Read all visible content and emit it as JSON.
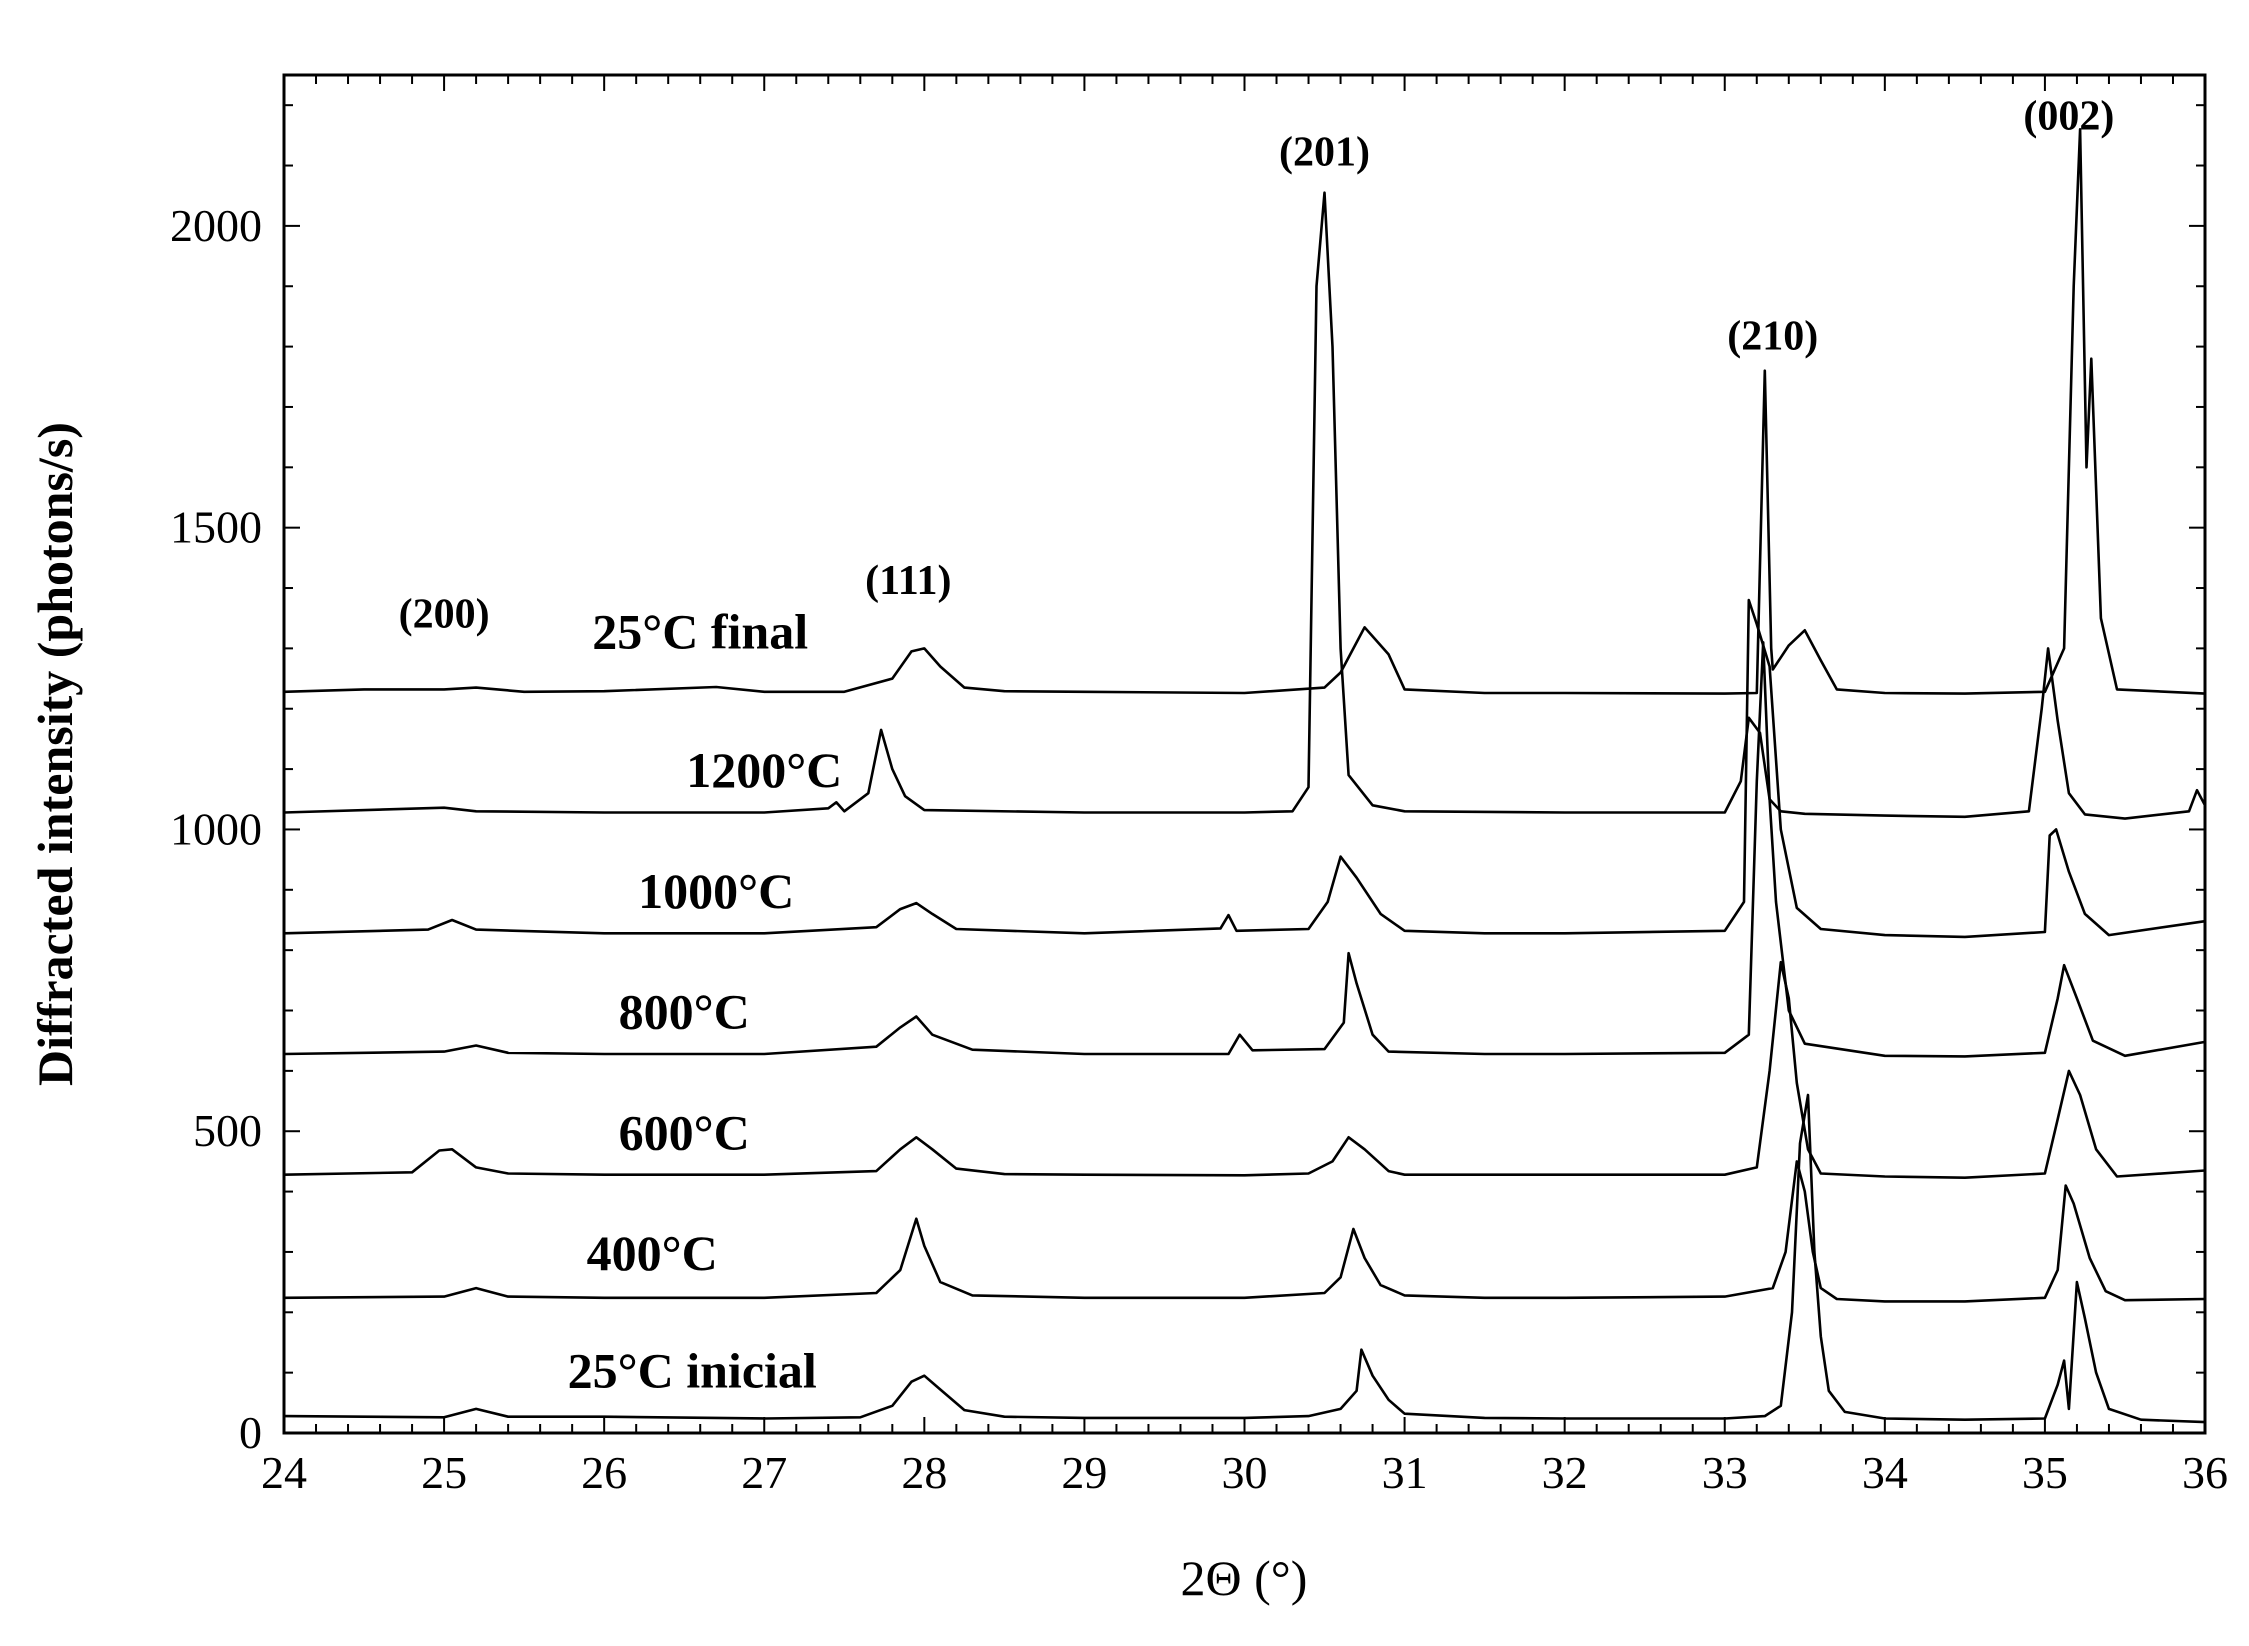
{
  "chart_data": {
    "type": "line",
    "xlabel": "2Θ (°)",
    "ylabel": "Diffracted intensity (photons/s)",
    "xlim": [
      24,
      36
    ],
    "ylim": [
      0,
      2250
    ],
    "x_ticks": [
      "24",
      "25",
      "26",
      "27",
      "28",
      "29",
      "30",
      "31",
      "32",
      "33",
      "34",
      "35",
      "36"
    ],
    "y_ticks": [
      "0",
      "500",
      "1000",
      "1500",
      "2000"
    ],
    "grid": false,
    "series": [
      {
        "name": "25°C inicial",
        "points": [
          [
            24.0,
            28
          ],
          [
            24.5,
            27
          ],
          [
            25.0,
            26
          ],
          [
            25.2,
            40
          ],
          [
            25.4,
            27
          ],
          [
            26.0,
            27
          ],
          [
            27.0,
            24
          ],
          [
            27.6,
            26
          ],
          [
            27.8,
            45
          ],
          [
            27.92,
            85
          ],
          [
            28.0,
            95
          ],
          [
            28.1,
            72
          ],
          [
            28.25,
            38
          ],
          [
            28.5,
            27
          ],
          [
            29.0,
            25
          ],
          [
            30.0,
            25
          ],
          [
            30.4,
            28
          ],
          [
            30.6,
            40
          ],
          [
            30.7,
            70
          ],
          [
            30.73,
            138
          ],
          [
            30.8,
            95
          ],
          [
            30.9,
            55
          ],
          [
            31.0,
            32
          ],
          [
            31.5,
            25
          ],
          [
            32.0,
            24
          ],
          [
            33.0,
            24
          ],
          [
            33.25,
            28
          ],
          [
            33.35,
            45
          ],
          [
            33.42,
            200
          ],
          [
            33.47,
            480
          ],
          [
            33.52,
            560
          ],
          [
            33.56,
            300
          ],
          [
            33.6,
            160
          ],
          [
            33.65,
            70
          ],
          [
            33.75,
            35
          ],
          [
            34.0,
            24
          ],
          [
            34.5,
            22
          ],
          [
            35.0,
            24
          ],
          [
            35.08,
            80
          ],
          [
            35.12,
            120
          ],
          [
            35.15,
            40
          ],
          [
            35.2,
            250
          ],
          [
            35.25,
            190
          ],
          [
            35.32,
            100
          ],
          [
            35.4,
            40
          ],
          [
            35.6,
            22
          ],
          [
            36.0,
            18
          ]
        ]
      },
      {
        "name": "400°C",
        "points": [
          [
            24.0,
            224
          ],
          [
            25.0,
            226
          ],
          [
            25.2,
            240
          ],
          [
            25.4,
            226
          ],
          [
            26.0,
            224
          ],
          [
            27.0,
            224
          ],
          [
            27.7,
            232
          ],
          [
            27.85,
            270
          ],
          [
            27.95,
            355
          ],
          [
            28.0,
            310
          ],
          [
            28.1,
            250
          ],
          [
            28.3,
            228
          ],
          [
            29.0,
            224
          ],
          [
            30.0,
            224
          ],
          [
            30.5,
            232
          ],
          [
            30.6,
            258
          ],
          [
            30.68,
            338
          ],
          [
            30.75,
            290
          ],
          [
            30.85,
            245
          ],
          [
            31.0,
            228
          ],
          [
            31.5,
            224
          ],
          [
            32.0,
            224
          ],
          [
            33.0,
            226
          ],
          [
            33.3,
            240
          ],
          [
            33.38,
            300
          ],
          [
            33.45,
            450
          ],
          [
            33.5,
            400
          ],
          [
            33.55,
            300
          ],
          [
            33.6,
            240
          ],
          [
            33.7,
            222
          ],
          [
            34.0,
            218
          ],
          [
            34.5,
            218
          ],
          [
            35.0,
            224
          ],
          [
            35.08,
            270
          ],
          [
            35.13,
            410
          ],
          [
            35.18,
            380
          ],
          [
            35.28,
            290
          ],
          [
            35.38,
            235
          ],
          [
            35.5,
            220
          ],
          [
            36.0,
            222
          ]
        ]
      },
      {
        "name": "600°C",
        "points": [
          [
            24.0,
            428
          ],
          [
            24.8,
            432
          ],
          [
            24.97,
            468
          ],
          [
            25.05,
            470
          ],
          [
            25.2,
            440
          ],
          [
            25.4,
            430
          ],
          [
            26.0,
            428
          ],
          [
            27.0,
            428
          ],
          [
            27.7,
            434
          ],
          [
            27.85,
            470
          ],
          [
            27.95,
            490
          ],
          [
            28.05,
            470
          ],
          [
            28.2,
            438
          ],
          [
            28.5,
            429
          ],
          [
            29.0,
            428
          ],
          [
            30.0,
            427
          ],
          [
            30.4,
            430
          ],
          [
            30.55,
            450
          ],
          [
            30.65,
            490
          ],
          [
            30.75,
            470
          ],
          [
            30.9,
            434
          ],
          [
            31.0,
            428
          ],
          [
            32.0,
            428
          ],
          [
            33.0,
            428
          ],
          [
            33.2,
            440
          ],
          [
            33.28,
            600
          ],
          [
            33.35,
            780
          ],
          [
            33.4,
            720
          ],
          [
            33.45,
            580
          ],
          [
            33.52,
            470
          ],
          [
            33.6,
            430
          ],
          [
            34.0,
            425
          ],
          [
            34.5,
            423
          ],
          [
            35.0,
            430
          ],
          [
            35.08,
            520
          ],
          [
            35.15,
            600
          ],
          [
            35.22,
            560
          ],
          [
            35.32,
            470
          ],
          [
            35.45,
            425
          ],
          [
            36.0,
            435
          ]
        ]
      },
      {
        "name": "800°C",
        "points": [
          [
            24.0,
            628
          ],
          [
            25.0,
            632
          ],
          [
            25.2,
            642
          ],
          [
            25.4,
            630
          ],
          [
            26.0,
            628
          ],
          [
            27.0,
            628
          ],
          [
            27.7,
            640
          ],
          [
            27.85,
            672
          ],
          [
            27.95,
            690
          ],
          [
            28.05,
            660
          ],
          [
            28.3,
            635
          ],
          [
            29.0,
            628
          ],
          [
            29.9,
            628
          ],
          [
            29.97,
            660
          ],
          [
            30.05,
            634
          ],
          [
            30.5,
            636
          ],
          [
            30.62,
            680
          ],
          [
            30.65,
            795
          ],
          [
            30.7,
            745
          ],
          [
            30.8,
            660
          ],
          [
            30.9,
            632
          ],
          [
            31.5,
            628
          ],
          [
            32.0,
            628
          ],
          [
            33.0,
            630
          ],
          [
            33.15,
            660
          ],
          [
            33.2,
            1080
          ],
          [
            33.24,
            1310
          ],
          [
            33.28,
            1050
          ],
          [
            33.32,
            880
          ],
          [
            33.4,
            700
          ],
          [
            33.5,
            645
          ],
          [
            34.0,
            625
          ],
          [
            34.5,
            624
          ],
          [
            35.0,
            630
          ],
          [
            35.08,
            720
          ],
          [
            35.12,
            775
          ],
          [
            35.2,
            720
          ],
          [
            35.3,
            650
          ],
          [
            35.5,
            625
          ],
          [
            36.0,
            648
          ]
        ]
      },
      {
        "name": "1000°C",
        "points": [
          [
            24.0,
            828
          ],
          [
            24.9,
            834
          ],
          [
            25.05,
            850
          ],
          [
            25.2,
            834
          ],
          [
            26.0,
            828
          ],
          [
            27.0,
            828
          ],
          [
            27.7,
            838
          ],
          [
            27.85,
            868
          ],
          [
            27.95,
            878
          ],
          [
            28.05,
            860
          ],
          [
            28.2,
            835
          ],
          [
            29.0,
            828
          ],
          [
            29.85,
            836
          ],
          [
            29.9,
            858
          ],
          [
            29.95,
            832
          ],
          [
            30.4,
            835
          ],
          [
            30.52,
            880
          ],
          [
            30.6,
            955
          ],
          [
            30.7,
            920
          ],
          [
            30.85,
            860
          ],
          [
            31.0,
            832
          ],
          [
            31.5,
            828
          ],
          [
            32.0,
            828
          ],
          [
            33.0,
            832
          ],
          [
            33.12,
            880
          ],
          [
            33.15,
            1380
          ],
          [
            33.2,
            1340
          ],
          [
            33.28,
            1270
          ],
          [
            33.35,
            1000
          ],
          [
            33.45,
            870
          ],
          [
            33.6,
            835
          ],
          [
            34.0,
            825
          ],
          [
            34.5,
            822
          ],
          [
            35.0,
            830
          ],
          [
            35.03,
            990
          ],
          [
            35.07,
            1000
          ],
          [
            35.15,
            930
          ],
          [
            35.25,
            860
          ],
          [
            35.4,
            825
          ],
          [
            36.0,
            848
          ]
        ]
      },
      {
        "name": "1200°C",
        "points": [
          [
            24.0,
            1028
          ],
          [
            25.0,
            1036
          ],
          [
            25.2,
            1030
          ],
          [
            26.0,
            1028
          ],
          [
            27.0,
            1028
          ],
          [
            27.4,
            1035
          ],
          [
            27.45,
            1045
          ],
          [
            27.5,
            1030
          ],
          [
            27.65,
            1060
          ],
          [
            27.73,
            1165
          ],
          [
            27.8,
            1100
          ],
          [
            27.88,
            1055
          ],
          [
            28.0,
            1032
          ],
          [
            29.0,
            1028
          ],
          [
            30.0,
            1028
          ],
          [
            30.3,
            1030
          ],
          [
            30.4,
            1070
          ],
          [
            30.45,
            1900
          ],
          [
            30.5,
            2055
          ],
          [
            30.55,
            1800
          ],
          [
            30.6,
            1300
          ],
          [
            30.65,
            1090
          ],
          [
            30.8,
            1040
          ],
          [
            31.0,
            1030
          ],
          [
            32.0,
            1028
          ],
          [
            33.0,
            1028
          ],
          [
            33.1,
            1080
          ],
          [
            33.15,
            1185
          ],
          [
            33.22,
            1160
          ],
          [
            33.28,
            1050
          ],
          [
            33.35,
            1030
          ],
          [
            33.5,
            1026
          ],
          [
            34.0,
            1023
          ],
          [
            34.5,
            1021
          ],
          [
            34.9,
            1030
          ],
          [
            34.98,
            1200
          ],
          [
            35.02,
            1300
          ],
          [
            35.08,
            1180
          ],
          [
            35.15,
            1060
          ],
          [
            35.25,
            1025
          ],
          [
            35.5,
            1018
          ],
          [
            35.9,
            1030
          ],
          [
            35.95,
            1065
          ],
          [
            36.0,
            1040
          ]
        ]
      },
      {
        "name": "25°C final",
        "points": [
          [
            24.0,
            1228
          ],
          [
            24.5,
            1232
          ],
          [
            25.0,
            1232
          ],
          [
            25.2,
            1235
          ],
          [
            25.5,
            1228
          ],
          [
            26.0,
            1229
          ],
          [
            26.7,
            1236
          ],
          [
            27.0,
            1228
          ],
          [
            27.5,
            1228
          ],
          [
            27.8,
            1250
          ],
          [
            27.92,
            1295
          ],
          [
            28.0,
            1300
          ],
          [
            28.1,
            1270
          ],
          [
            28.25,
            1235
          ],
          [
            28.5,
            1229
          ],
          [
            29.0,
            1228
          ],
          [
            30.0,
            1226
          ],
          [
            30.5,
            1235
          ],
          [
            30.6,
            1260
          ],
          [
            30.75,
            1335
          ],
          [
            30.9,
            1290
          ],
          [
            31.0,
            1232
          ],
          [
            31.5,
            1226
          ],
          [
            32.0,
            1226
          ],
          [
            33.0,
            1225
          ],
          [
            33.2,
            1226
          ],
          [
            33.25,
            1760
          ],
          [
            33.29,
            1300
          ],
          [
            33.3,
            1265
          ],
          [
            33.4,
            1305
          ],
          [
            33.5,
            1330
          ],
          [
            33.6,
            1280
          ],
          [
            33.7,
            1232
          ],
          [
            34.0,
            1226
          ],
          [
            34.5,
            1225
          ],
          [
            35.0,
            1228
          ],
          [
            35.12,
            1300
          ],
          [
            35.18,
            1900
          ],
          [
            35.22,
            2160
          ],
          [
            35.26,
            1600
          ],
          [
            35.29,
            1780
          ],
          [
            35.35,
            1350
          ],
          [
            35.45,
            1232
          ],
          [
            36.0,
            1225
          ]
        ]
      }
    ],
    "curve_labels": [
      {
        "text": "25°C final",
        "x": 26.6,
        "y": 1300
      },
      {
        "text": "1200°C",
        "x": 27.0,
        "y": 1070
      },
      {
        "text": "1000°C",
        "x": 26.7,
        "y": 870
      },
      {
        "text": "800°C",
        "x": 26.5,
        "y": 670
      },
      {
        "text": "600°C",
        "x": 26.5,
        "y": 470
      },
      {
        "text": "400°C",
        "x": 26.3,
        "y": 270
      },
      {
        "text": "25°C inicial",
        "x": 26.55,
        "y": 75
      }
    ],
    "peak_labels": [
      {
        "text": "(200)",
        "x": 25.0,
        "y": 1335
      },
      {
        "text": "(111)",
        "x": 27.9,
        "y": 1390
      },
      {
        "text": "(201)",
        "x": 30.5,
        "y": 2100
      },
      {
        "text": "(210)",
        "x": 33.3,
        "y": 1795
      },
      {
        "text": "(002)",
        "x": 35.15,
        "y": 2160
      }
    ]
  }
}
